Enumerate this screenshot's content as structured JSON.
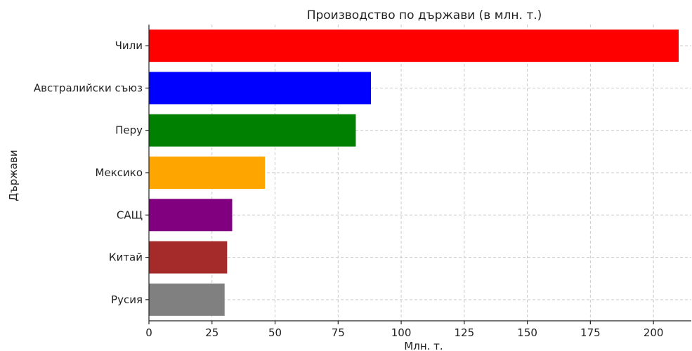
{
  "chart_data": {
    "type": "bar",
    "orientation": "horizontal",
    "title": "Производство по държави (в млн. т.)",
    "xlabel": "Млн. т.",
    "ylabel": "Държави",
    "categories": [
      "Чили",
      "Австралийски съюз",
      "Перу",
      "Мексико",
      "САЩ",
      "Китай",
      "Русия"
    ],
    "values": [
      210,
      88,
      82,
      46,
      33,
      31,
      30
    ],
    "colors": [
      "#ff0000",
      "#0000ff",
      "#008000",
      "#ffa500",
      "#800080",
      "#a52a2a",
      "#808080"
    ],
    "xlim": [
      0,
      215
    ],
    "xticks": [
      0,
      25,
      50,
      75,
      100,
      125,
      150,
      175,
      200
    ],
    "grid": true
  }
}
